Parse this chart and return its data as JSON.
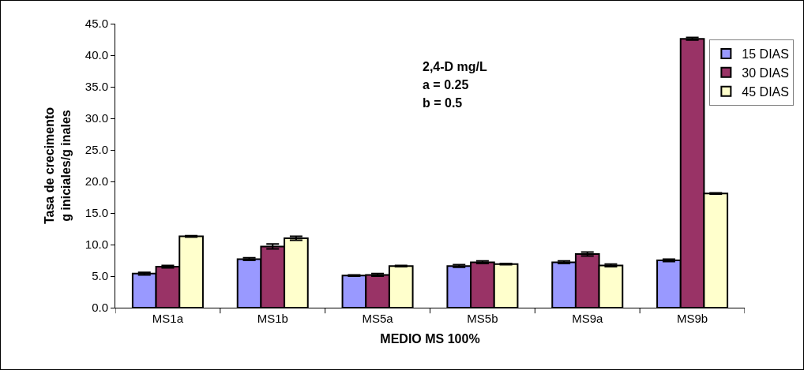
{
  "chart_data": {
    "type": "bar",
    "xlabel": "MEDIO MS 100%",
    "ylabel": "Tasa de crecimento\ng iniciales/g inales",
    "annotations": [
      "2,4-D mg/L",
      "a = 0.25",
      "b = 0.5"
    ],
    "categories": [
      "MS1a",
      "MS1b",
      "MS5a",
      "MS5b",
      "MS9a",
      "MS9b"
    ],
    "series": [
      {
        "name": "15 DIAS",
        "color": "#9999ff",
        "values": [
          5.4,
          7.7,
          5.1,
          6.6,
          7.2,
          7.5
        ],
        "errors": [
          0.2,
          0.2,
          0.1,
          0.2,
          0.2,
          0.2
        ]
      },
      {
        "name": "30 DIAS",
        "color": "#993366",
        "values": [
          6.5,
          9.7,
          5.2,
          7.2,
          8.5,
          42.6
        ],
        "errors": [
          0.2,
          0.4,
          0.2,
          0.2,
          0.3,
          0.2
        ]
      },
      {
        "name": "45 DIAS",
        "color": "#ffffcc",
        "values": [
          11.3,
          11.0,
          6.6,
          6.9,
          6.7,
          18.1
        ],
        "errors": [
          0.1,
          0.3,
          0.1,
          0.1,
          0.2,
          0.1
        ]
      }
    ],
    "ylim": [
      0,
      45
    ],
    "yticks": [
      {
        "value": 0,
        "label": "0.0"
      },
      {
        "value": 5,
        "label": "5.0"
      },
      {
        "value": 10,
        "label": "10.0"
      },
      {
        "value": 15,
        "label": "15.0"
      },
      {
        "value": 20,
        "label": "20.0"
      },
      {
        "value": 25,
        "label": "25.0"
      },
      {
        "value": 30,
        "label": "30.0"
      },
      {
        "value": 35,
        "label": "35.0"
      },
      {
        "value": 40,
        "label": "40.0"
      },
      {
        "value": 45,
        "label": "45.0"
      }
    ],
    "grid": false,
    "legend": "top right"
  }
}
